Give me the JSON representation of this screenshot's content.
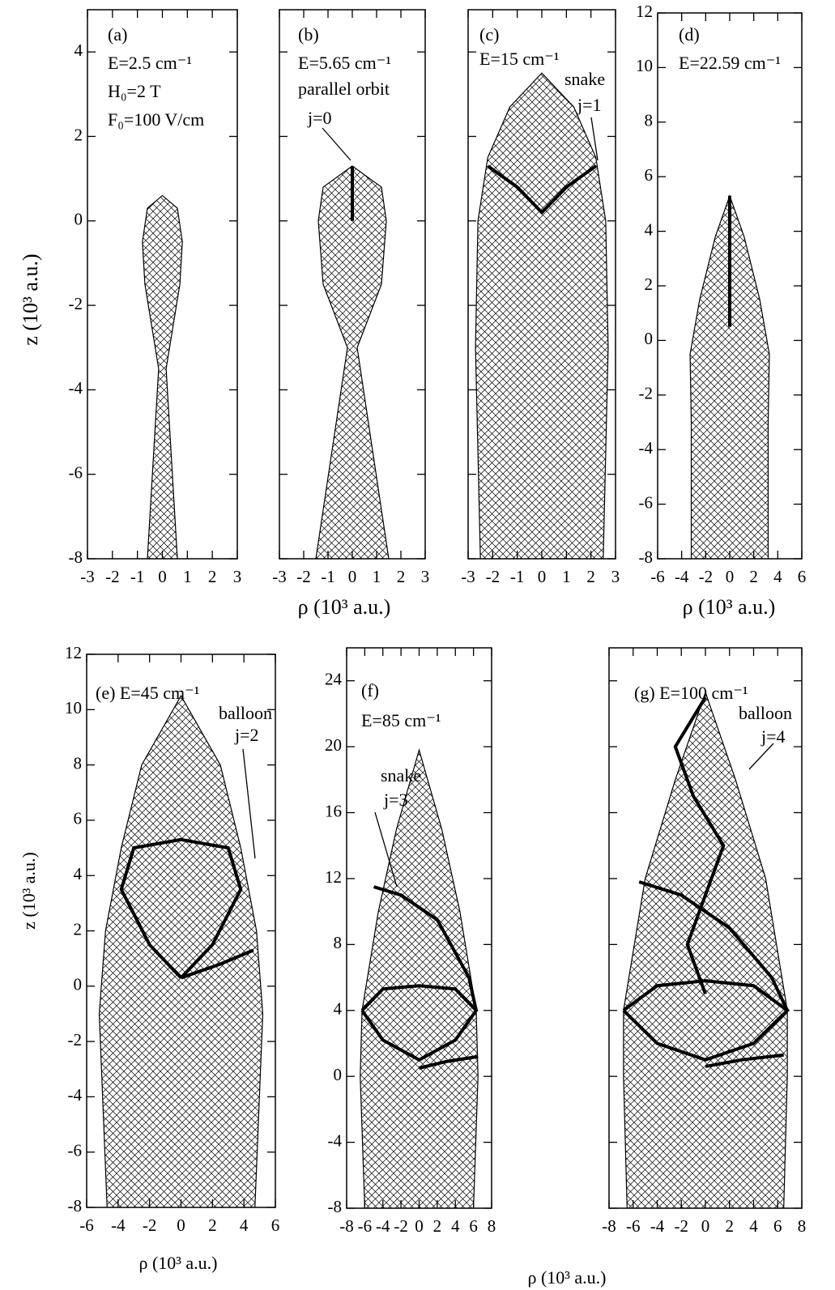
{
  "chart_data": [
    {
      "type": "line",
      "ylabel": "z (10³ a.u.)",
      "annotations": [
        "(a)",
        "E=2.5 cm⁻¹",
        "H₀=2 T",
        "F₀=100 V/cm"
      ],
      "xlim": [
        -3,
        3
      ],
      "ylim": [
        -8,
        5
      ],
      "xticks": [
        -3,
        -2,
        -1,
        0,
        1,
        2,
        3
      ],
      "yticks": [
        -8,
        -6,
        -4,
        -2,
        0,
        2,
        4
      ],
      "ytick_labels": true,
      "envelope": {
        "x": [
          -0.6,
          -0.15,
          -0.7,
          -0.8,
          -0.6,
          0,
          0.6,
          0.8,
          0.7,
          0.15,
          0.6
        ],
        "y": [
          -8,
          -3.5,
          -1.5,
          -0.5,
          0.3,
          0.6,
          0.3,
          -0.5,
          -1.5,
          -3.5,
          -8
        ]
      },
      "orbits": []
    },
    {
      "type": "line",
      "xlabel": "ρ (10³ a.u.)",
      "annotations": [
        "(b)",
        "E=5.65 cm⁻¹",
        "parallel orbit",
        "j=0"
      ],
      "xlim": [
        -3,
        3
      ],
      "ylim": [
        -8,
        5
      ],
      "xticks": [
        -3,
        -2,
        -1,
        0,
        1,
        2,
        3
      ],
      "yticks": [
        -8,
        -6,
        -4,
        -2,
        0,
        2,
        4
      ],
      "ytick_labels": false,
      "envelope": {
        "x": [
          -1.5,
          -0.2,
          -1.2,
          -1.4,
          -1.2,
          0,
          1.2,
          1.4,
          1.2,
          0.2,
          1.5
        ],
        "y": [
          -8,
          -3,
          -1.5,
          0,
          0.8,
          1.3,
          0.8,
          0,
          -1.5,
          -3,
          -8
        ]
      },
      "orbits": [
        {
          "x": [
            0,
            0
          ],
          "y": [
            0,
            1.3
          ]
        }
      ]
    },
    {
      "type": "line",
      "annotations": [
        "(c)",
        "E=15 cm⁻¹",
        "snake",
        "j=1"
      ],
      "xlim": [
        -3,
        3
      ],
      "ylim": [
        -8,
        5
      ],
      "xticks": [
        -3,
        -2,
        -1,
        0,
        1,
        2,
        3
      ],
      "yticks": [
        -8,
        -6,
        -4,
        -2,
        0,
        2,
        4
      ],
      "ytick_labels": false,
      "envelope": {
        "x": [
          -2.5,
          -2.7,
          -2.6,
          -2.2,
          -1.3,
          0,
          1.3,
          2.2,
          2.6,
          2.7,
          2.5
        ],
        "y": [
          -8,
          -3,
          0,
          1.5,
          2.7,
          3.5,
          2.7,
          1.5,
          0,
          -3,
          -8
        ]
      },
      "orbits": [
        {
          "x": [
            -2.2,
            -1,
            0,
            1,
            2.2
          ],
          "y": [
            1.3,
            0.8,
            0.2,
            0.8,
            1.3
          ]
        }
      ]
    },
    {
      "type": "line",
      "xlabel": "ρ (10³ a.u.)",
      "annotations": [
        "(d)",
        "E=22.59 cm⁻¹"
      ],
      "xlim": [
        -6,
        6
      ],
      "ylim": [
        -8,
        12
      ],
      "xticks": [
        -6,
        -4,
        -2,
        0,
        2,
        4,
        6
      ],
      "yticks": [
        -8,
        -6,
        -4,
        -2,
        0,
        2,
        4,
        6,
        8,
        10,
        12
      ],
      "ytick_labels": true,
      "envelope": {
        "x": [
          -3.2,
          -3.2,
          -3.3,
          -2.5,
          -1.2,
          0,
          1.2,
          2.5,
          3.3,
          3.2,
          3.2
        ],
        "y": [
          -8,
          -3,
          -0.5,
          1.5,
          3.8,
          5.3,
          3.8,
          1.5,
          -0.5,
          -3,
          -8
        ]
      },
      "orbits": [
        {
          "x": [
            0,
            0
          ],
          "y": [
            0.5,
            5.3
          ]
        }
      ]
    },
    {
      "type": "line",
      "xlabel": "ρ (10³ a.u.)",
      "ylabel": "z (10³ a.u.)",
      "annotations": [
        "(e) E=45 cm⁻¹",
        "balloon",
        "j=2"
      ],
      "xlim": [
        -6,
        6
      ],
      "ylim": [
        -8,
        12
      ],
      "xticks": [
        -6,
        -4,
        -2,
        0,
        2,
        4,
        6
      ],
      "yticks": [
        -8,
        -6,
        -4,
        -2,
        0,
        2,
        4,
        6,
        8,
        10,
        12
      ],
      "ytick_labels": true,
      "envelope": {
        "x": [
          -4.7,
          -5.2,
          -4.8,
          -3.8,
          -2.5,
          0,
          2.5,
          3.8,
          4.8,
          5.2,
          4.7
        ],
        "y": [
          -8,
          -1,
          2,
          5,
          8,
          10.5,
          8,
          5,
          2,
          -1,
          -8
        ]
      },
      "orbits": [
        {
          "x": [
            0,
            -2,
            -3.8,
            -3,
            0,
            3,
            3.8,
            2,
            0
          ],
          "y": [
            0.3,
            1.5,
            3.5,
            5,
            5.3,
            5,
            3.5,
            1.5,
            0.3
          ]
        },
        {
          "x": [
            0,
            2.5,
            4.6
          ],
          "y": [
            0.3,
            0.8,
            1.3
          ]
        }
      ]
    },
    {
      "type": "line",
      "xlabel": "ρ (10³ a.u.)",
      "annotations": [
        "(f)",
        "E=85 cm⁻¹",
        "snake",
        "j=3"
      ],
      "xlim": [
        -8,
        8
      ],
      "ylim": [
        -8,
        26
      ],
      "xticks": [
        -8,
        -6,
        -4,
        -2,
        0,
        2,
        4,
        6,
        8
      ],
      "yticks": [
        -8,
        -4,
        0,
        4,
        8,
        12,
        16,
        20,
        24
      ],
      "ytick_labels": true,
      "envelope": {
        "x": [
          -6,
          -6.5,
          -6.3,
          -4.5,
          -2.5,
          0,
          2.5,
          4.5,
          6.3,
          6.5,
          6
        ],
        "y": [
          -8,
          0,
          4,
          10,
          15,
          19.8,
          15,
          10,
          4,
          0,
          -8
        ]
      },
      "orbits": [
        {
          "x": [
            -6.3,
            -4,
            0,
            4,
            6.3,
            4,
            0,
            -4,
            -6.3
          ],
          "y": [
            4,
            5.3,
            5.5,
            5.3,
            4,
            2.2,
            1,
            2.2,
            4
          ]
        },
        {
          "x": [
            -5,
            -2,
            2,
            5.5,
            6.3
          ],
          "y": [
            11.5,
            11,
            9.5,
            6,
            4
          ]
        },
        {
          "x": [
            0,
            3,
            6.5
          ],
          "y": [
            0.5,
            0.9,
            1.2
          ]
        }
      ]
    },
    {
      "type": "line",
      "annotations": [
        "(g) E=100 cm⁻¹",
        "balloon",
        "j=4"
      ],
      "xlim": [
        -8,
        8
      ],
      "ylim": [
        -8,
        26
      ],
      "xticks": [
        -8,
        -6,
        -4,
        -2,
        0,
        2,
        4,
        6,
        8
      ],
      "yticks": [
        -8,
        -4,
        0,
        4,
        8,
        12,
        16,
        20,
        24
      ],
      "ytick_labels": false,
      "envelope": {
        "x": [
          -6.5,
          -6.8,
          -6.8,
          -5,
          -2.5,
          0,
          2.5,
          5,
          6.8,
          6.8,
          6.5
        ],
        "y": [
          -8,
          0,
          4,
          12,
          18,
          23.3,
          18,
          12,
          4,
          0,
          -8
        ]
      },
      "orbits": [
        {
          "x": [
            -6.8,
            -4,
            0,
            4,
            6.8,
            4,
            0,
            -4,
            -6.8
          ],
          "y": [
            4,
            5.5,
            5.8,
            5.5,
            4,
            2,
            1,
            2,
            4
          ]
        },
        {
          "x": [
            0,
            -2.5,
            -1,
            1.5,
            0,
            -1.5,
            0
          ],
          "y": [
            23,
            20,
            17,
            14,
            11,
            8,
            5
          ]
        },
        {
          "x": [
            -5.5,
            -2,
            2,
            5.5,
            6.8
          ],
          "y": [
            11.8,
            11,
            9,
            6,
            4
          ]
        },
        {
          "x": [
            0,
            3,
            6.5
          ],
          "y": [
            0.6,
            1,
            1.3
          ]
        }
      ]
    }
  ]
}
